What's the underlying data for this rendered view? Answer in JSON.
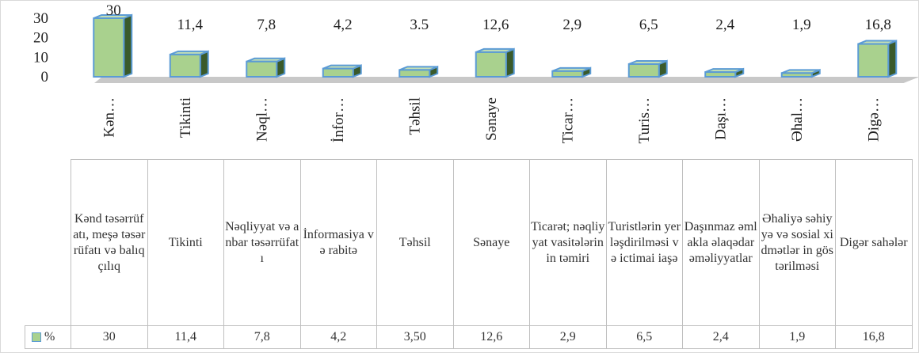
{
  "chart_data": {
    "type": "bar3d",
    "categories": [
      "Kənd təsərrüfatı, meşə təsərrüfatı və balıqçılıq",
      "Tikinti",
      "Nəqliyyat və anbar təsərrüfatı",
      "İnformasiya və rabitə",
      "Təhsil",
      "Sənaye",
      "Ticarət; nəqliyyat vasitələrinin təmiri",
      "Turistlərin yerləşdirilməsi və ictimai iaşə",
      "Daşınmaz əmlakla əlaqədar əməliyyatlar",
      "Əhaliyə səhiyyə və sosial xidmətlər in göstərilməsi",
      "Digər sahələr"
    ],
    "axis_labels": [
      "Kən…",
      "Tikinti",
      "Nəql…",
      "İnfor…",
      "Təhsil",
      "Sənaye",
      "Ticar…",
      "Turis…",
      "Daşı…",
      "Əhal…",
      "Digə…"
    ],
    "series": [
      {
        "name": "%",
        "color": "#a9d18e",
        "values": [
          30,
          11.4,
          7.8,
          4.2,
          3.5,
          12.6,
          2.9,
          6.5,
          2.4,
          1.9,
          16.8
        ],
        "value_labels": [
          "30",
          "11,4",
          "7,8",
          "4,2",
          "3.5",
          "12,6",
          "2,9",
          "6,5",
          "2,4",
          "1,9",
          "16,8"
        ],
        "table_labels": [
          "30",
          "11,4",
          "7,8",
          "4,2",
          "3,50",
          "12,6",
          "2,9",
          "6,5",
          "2,4",
          "1,9",
          "16,8"
        ]
      }
    ],
    "ylim": [
      0,
      30
    ],
    "yticks": [
      0,
      10,
      20,
      30
    ]
  }
}
